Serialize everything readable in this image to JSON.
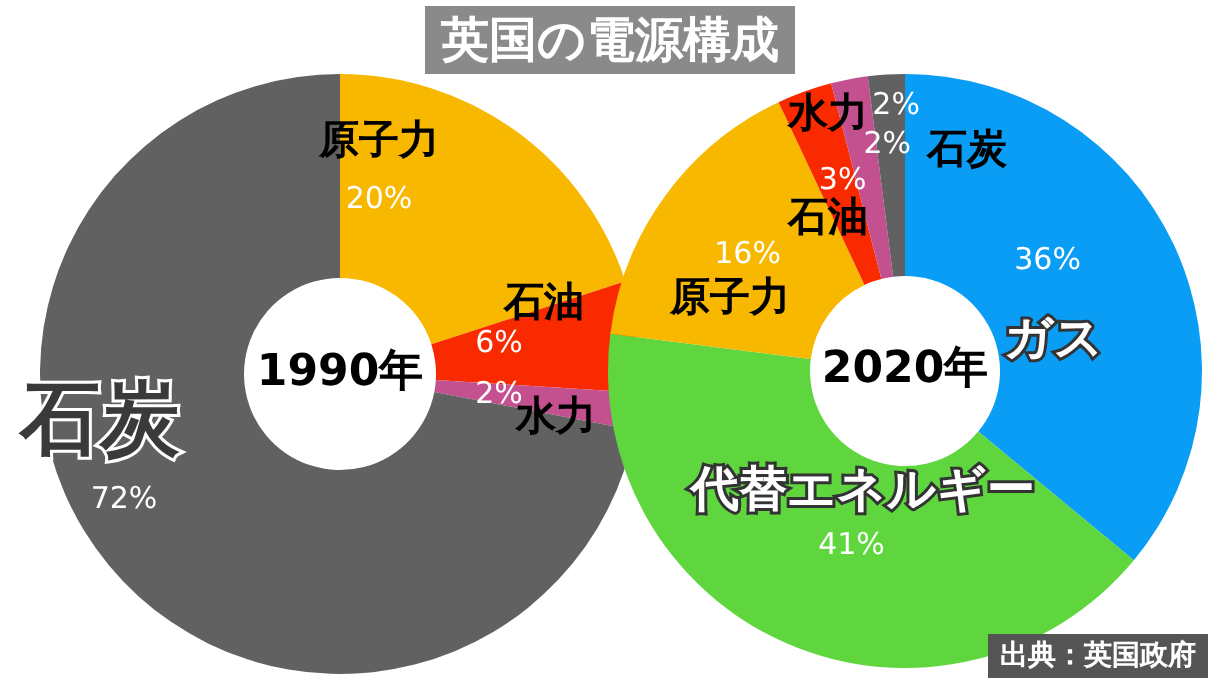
{
  "chart_data": [
    {
      "type": "donut",
      "title": "英国の電源構成",
      "subtitle": "1990年",
      "categories": [
        "原子力",
        "石油",
        "水力",
        "石炭"
      ],
      "values": [
        20,
        6,
        2,
        72
      ],
      "colors": [
        "#f8b800",
        "#fa2a00",
        "#c4518f",
        "#616161"
      ],
      "value_labels": [
        "20%",
        "6%",
        "2%",
        "72%"
      ],
      "legend": false
    },
    {
      "type": "donut",
      "subtitle": "2020年",
      "categories": [
        "ガス",
        "代替エネルギー",
        "原子力",
        "石油",
        "水力",
        "石炭"
      ],
      "values": [
        36,
        41,
        16,
        3,
        2,
        2
      ],
      "colors": [
        "#0a9df5",
        "#5fd63e",
        "#f8b800",
        "#fa2a00",
        "#c4518f",
        "#616161"
      ],
      "value_labels": [
        "36%",
        "41%",
        "16%",
        "3%",
        "2%",
        "2%"
      ],
      "legend": false,
      "annotations": [
        "出典：英国政府"
      ]
    }
  ]
}
